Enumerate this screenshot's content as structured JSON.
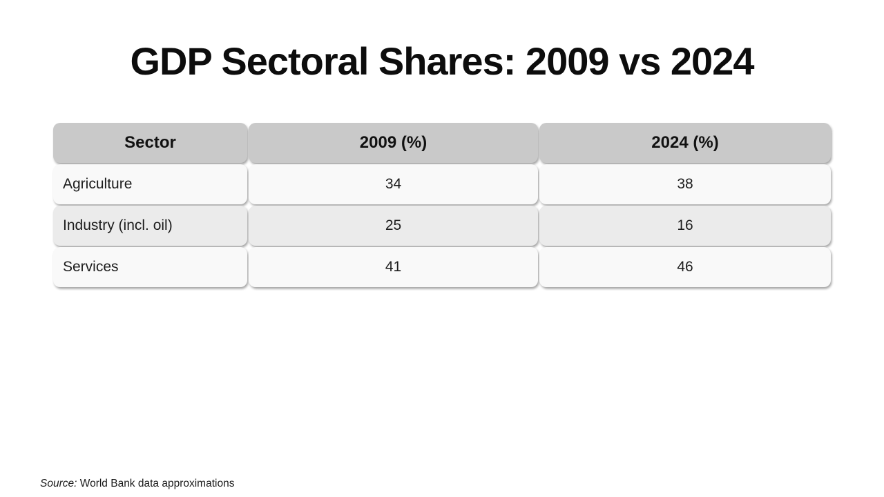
{
  "title": "GDP Sectoral Shares: 2009 vs 2024",
  "table": {
    "columns": [
      "Sector",
      "2009 (%)",
      "2024 (%)"
    ],
    "rows": [
      {
        "sector": "Agriculture",
        "v2009": "34",
        "v2024": "38"
      },
      {
        "sector": "Industry (incl. oil)",
        "v2009": "25",
        "v2024": "16"
      },
      {
        "sector": "Services",
        "v2009": "41",
        "v2024": "46"
      }
    ]
  },
  "source": {
    "label": "Source:",
    "text": " World Bank data approximations"
  },
  "colors": {
    "header_bg": "#c9c9c9",
    "row_odd_bg": "#f9f9f9",
    "row_even_bg": "#ebebeb",
    "title_text": "#0d0d0d",
    "cell_text": "#1c1c1c"
  },
  "chart_data": {
    "type": "table",
    "title": "GDP Sectoral Shares: 2009 vs 2024",
    "columns": [
      "Sector",
      "2009 (%)",
      "2024 (%)"
    ],
    "categories": [
      "Agriculture",
      "Industry (incl. oil)",
      "Services"
    ],
    "series": [
      {
        "name": "2009 (%)",
        "values": [
          34,
          25,
          41
        ]
      },
      {
        "name": "2024 (%)",
        "values": [
          38,
          16,
          46
        ]
      }
    ],
    "source": "Source: World Bank data approximations"
  }
}
